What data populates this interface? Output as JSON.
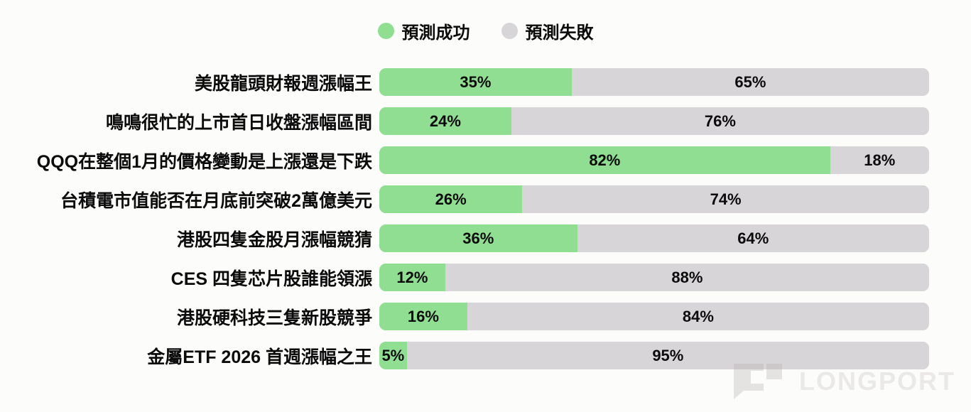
{
  "legend": {
    "success_label": "預測成功",
    "fail_label": "預測失敗"
  },
  "colors": {
    "success": "#8FDE91",
    "fail": "#D8D5D8",
    "text": "#0B0B0B",
    "background": "#FCFCFB"
  },
  "watermark": {
    "brand": "LONGPORT"
  },
  "chart_data": {
    "type": "bar",
    "orientation": "horizontal",
    "stacked": true,
    "unit": "%",
    "title": "",
    "legend_position": "top",
    "value_labels": "inside",
    "xlim": [
      0,
      100
    ],
    "categories": [
      "美股龍頭財報週漲幅王",
      "鳴鳴很忙的上市首日收盤漲幅區間",
      "QQQ在整個1月的價格變動是上漲還是下跌",
      "台積電市值能否在月底前突破2萬億美元",
      "港股四隻金股月漲幅競猜",
      "CES 四隻芯片股誰能領漲",
      "港股硬科技三隻新股競爭",
      "金屬ETF 2026 首週漲幅之王"
    ],
    "series": [
      {
        "name": "預測成功",
        "color": "#8FDE91",
        "values": [
          35,
          24,
          82,
          26,
          36,
          12,
          16,
          5
        ]
      },
      {
        "name": "預測失敗",
        "color": "#D8D5D8",
        "values": [
          65,
          76,
          18,
          74,
          64,
          88,
          84,
          95
        ]
      }
    ]
  }
}
